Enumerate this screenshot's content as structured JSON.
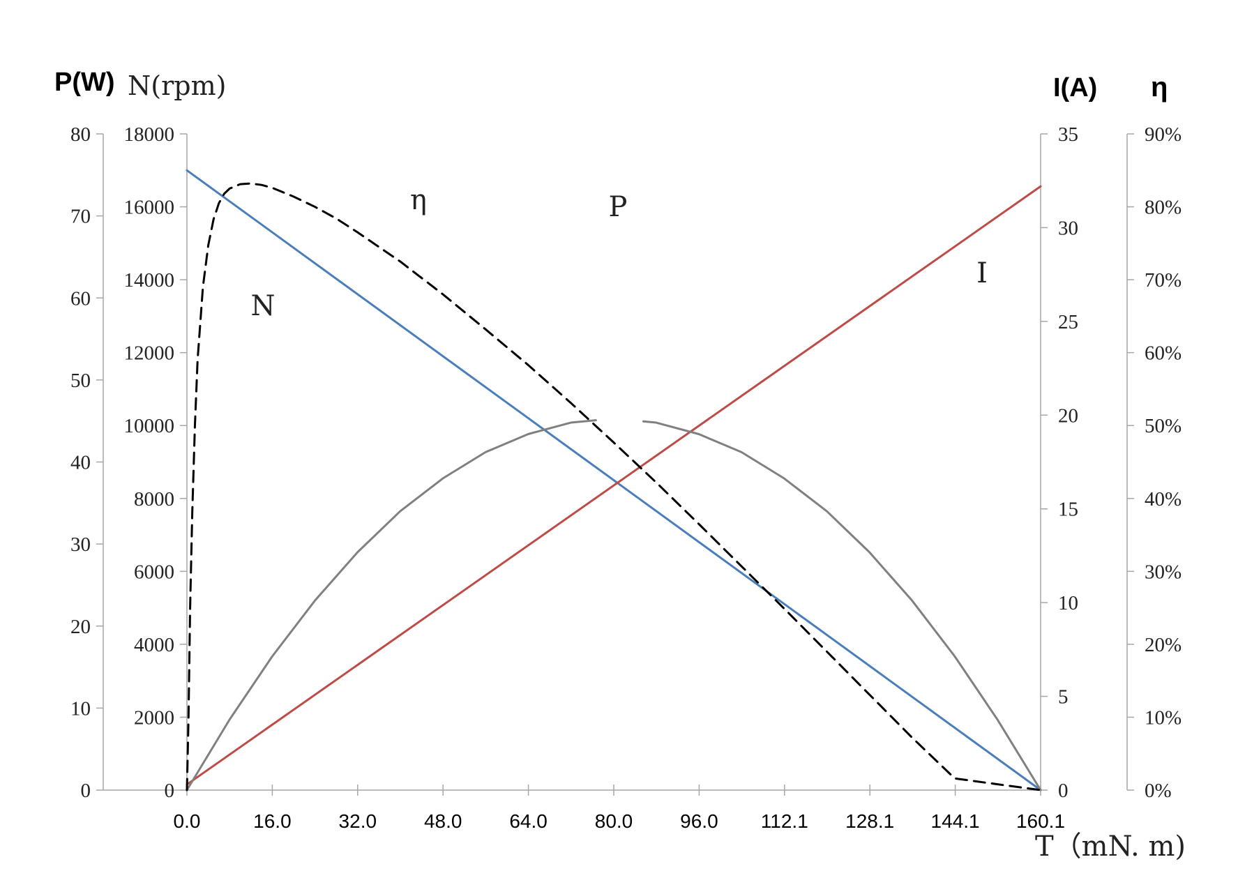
{
  "chart_data": {
    "type": "line",
    "x_label": "T（mN. m)",
    "x_ticks": [
      "0.0",
      "16.0",
      "32.0",
      "48.0",
      "64.0",
      "80.0",
      "96.0",
      "112.1",
      "128.1",
      "144.1",
      "160.1"
    ],
    "x_range": [
      0,
      160.1
    ],
    "axes": {
      "P": {
        "title": "P(W)",
        "range": [
          0,
          80
        ],
        "ticks": [
          "0",
          "10",
          "20",
          "30",
          "40",
          "50",
          "60",
          "70",
          "80"
        ]
      },
      "N": {
        "title": "N(rpm)",
        "range": [
          0,
          18000
        ],
        "ticks": [
          "0",
          "2000",
          "4000",
          "6000",
          "8000",
          "10000",
          "12000",
          "14000",
          "16000",
          "18000"
        ]
      },
      "I": {
        "title": "I(A)",
        "range": [
          0,
          35
        ],
        "ticks": [
          "0",
          "5",
          "10",
          "15",
          "20",
          "25",
          "30",
          "35"
        ]
      },
      "eta": {
        "title": "η",
        "range": [
          0,
          0.9
        ],
        "ticks": [
          "0%",
          "10%",
          "20%",
          "30%",
          "40%",
          "50%",
          "60%",
          "70%",
          "80%",
          "90%"
        ]
      }
    },
    "series": [
      {
        "name": "N",
        "axis": "N",
        "color": "#4a7ebb",
        "style": "solid",
        "x": [
          0,
          160.1
        ],
        "y": [
          17000,
          0
        ]
      },
      {
        "name": "I",
        "axis": "I",
        "color": "#be4b48",
        "style": "solid",
        "x": [
          0,
          160.1
        ],
        "y": [
          0.3,
          32.2
        ]
      },
      {
        "name": "P",
        "axis": "P",
        "color": "#808080",
        "style": "solid",
        "x": [
          0,
          8,
          16,
          24,
          32,
          40,
          48,
          56,
          64,
          72,
          80,
          88,
          96,
          104,
          112,
          120,
          128,
          136,
          144,
          152,
          160.1
        ],
        "y": [
          0,
          8.6,
          16.3,
          23.1,
          29.0,
          34.0,
          38.0,
          41.2,
          43.4,
          44.8,
          45.3,
          44.8,
          43.4,
          41.2,
          38.0,
          34.0,
          29.0,
          23.1,
          16.3,
          8.6,
          0
        ],
        "gap_x": [
          76.7,
          85.6
        ]
      },
      {
        "name": "η",
        "axis": "eta",
        "color": "#000000",
        "style": "dashed",
        "x": [
          0,
          0.3,
          0.6,
          1,
          1.5,
          2,
          3,
          4,
          5,
          6,
          7,
          8,
          10,
          12,
          14,
          16,
          18,
          20,
          24,
          28,
          32,
          40,
          48,
          56,
          64,
          72,
          80,
          88,
          96,
          104,
          112,
          120,
          128,
          136,
          144,
          152,
          160.1
        ],
        "y": [
          0,
          0.1,
          0.25,
          0.38,
          0.5,
          0.59,
          0.69,
          0.747,
          0.783,
          0.805,
          0.818,
          0.825,
          0.831,
          0.832,
          0.83,
          0.826,
          0.82,
          0.814,
          0.8,
          0.784,
          0.765,
          0.725,
          0.68,
          0.632,
          0.583,
          0.531,
          0.477,
          0.422,
          0.365,
          0.307,
          0.249,
          0.19,
          0.131,
          0.072,
          0.016,
          0.008,
          0
        ]
      }
    ],
    "curve_labels": [
      {
        "series": "N",
        "text": "N"
      },
      {
        "series": "η",
        "text": "η"
      },
      {
        "series": "P",
        "text": "P"
      },
      {
        "series": "I",
        "text": "I"
      }
    ]
  }
}
